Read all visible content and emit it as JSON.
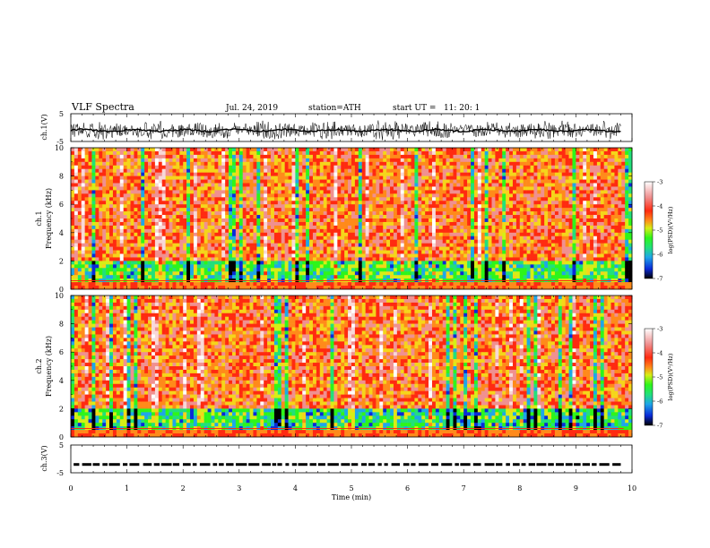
{
  "header": {
    "title": "VLF Spectra",
    "date": "Jul. 24, 2019",
    "station": "station=ATH",
    "start_ut": "start UT =   11: 20: 1"
  },
  "colors": {
    "spectrum_scale": [
      "#000000",
      "#0a2ad8",
      "#1fa6e8",
      "#22e07a",
      "#2ef51a",
      "#d6ee16",
      "#f5d51a",
      "#ff8a1a",
      "#ff2a10",
      "#f09090",
      "#f8d8d8",
      "#ffffff"
    ]
  },
  "chart_data": [
    {
      "type": "line",
      "ylabel": "ch.1(V)",
      "ylim": [
        -5,
        5
      ],
      "yticks": [
        "5",
        "-5"
      ],
      "xlim": [
        0,
        10
      ],
      "description_level": "dense waveform centered near -1 V"
    },
    {
      "type": "heatmap",
      "ylabel_line1": "ch.1",
      "ylabel_line2": "Frequency (kHz)",
      "ylim": [
        0,
        10
      ],
      "yticks": [
        "0",
        "2",
        "4",
        "6",
        "8",
        "10"
      ],
      "xlim": [
        0,
        10
      ],
      "colorbar": {
        "label": "log(PSD)(V²/Hz)",
        "ticks": [
          "-3",
          "-4",
          "-5",
          "-6",
          "-7"
        ],
        "range": [
          -7,
          -3
        ]
      }
    },
    {
      "type": "heatmap",
      "ylabel_line1": "ch.2",
      "ylabel_line2": "Frequency (kHz)",
      "ylim": [
        0,
        10
      ],
      "yticks": [
        "0",
        "2",
        "4",
        "6",
        "8",
        "10"
      ],
      "xlim": [
        0,
        10
      ],
      "colorbar": {
        "label": "log(PSD)(V²/Hz)",
        "ticks": [
          "-3",
          "-4",
          "-5",
          "-6",
          "-7"
        ],
        "range": [
          -7,
          -3
        ]
      }
    },
    {
      "type": "line",
      "ylabel": "ch.3(V)",
      "ylim": [
        -5,
        5
      ],
      "yticks": [
        "5",
        "-5"
      ],
      "xlim": [
        0,
        10
      ],
      "xticks": [
        "0",
        "1",
        "2",
        "3",
        "4",
        "5",
        "6",
        "7",
        "8",
        "9",
        "10"
      ],
      "xlabel": "Time (min)",
      "data_end_min": 9.8,
      "level_v": -2
    }
  ]
}
